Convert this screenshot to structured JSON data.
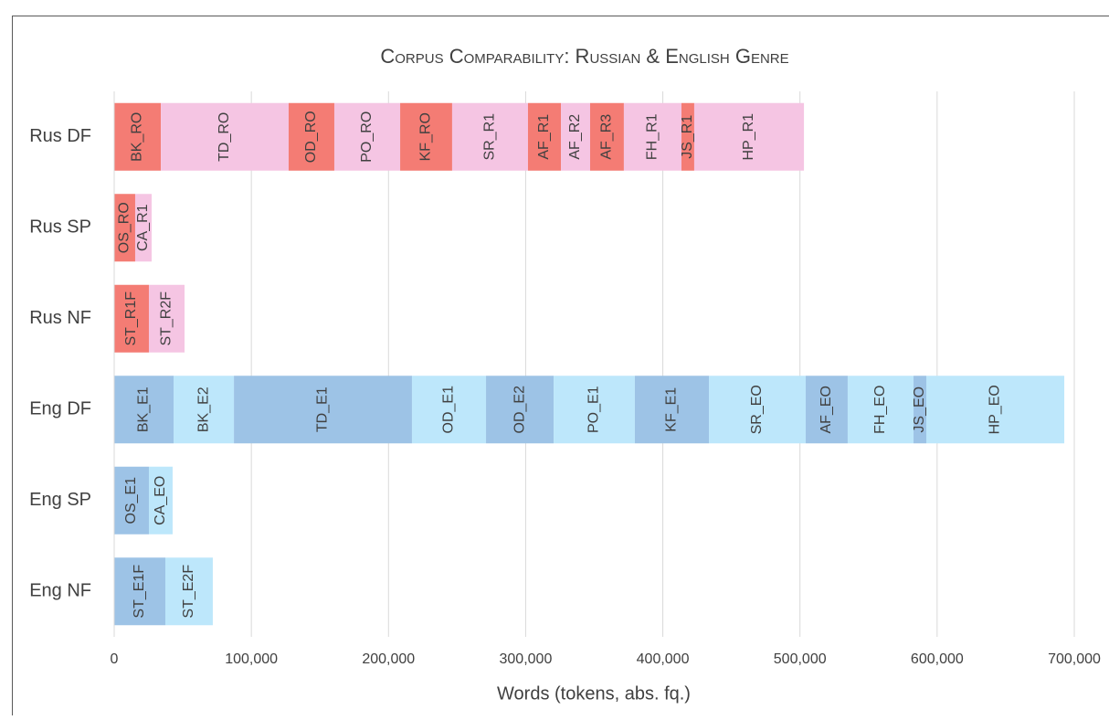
{
  "chart_data": {
    "type": "stacked-bar-horizontal",
    "title": "Corpus Comparability: Russian & English Genre",
    "x_label": "Words (tokens, abs. fq.)",
    "categories": [
      "Rus DF",
      "Rus SP",
      "Rus NF",
      "Eng DF",
      "Eng SP",
      "Eng NF"
    ],
    "stacks": [
      [
        {
          "label": "BK_RO",
          "value": 34000,
          "color": "#f47c74"
        },
        {
          "label": "TD_RO",
          "value": 93200,
          "color": "#f5c5e3"
        },
        {
          "label": "OD_RO",
          "value": 33300,
          "color": "#f47c74"
        },
        {
          "label": "PO_RO",
          "value": 48000,
          "color": "#f5c5e3"
        },
        {
          "label": "KF_RO",
          "value": 37900,
          "color": "#f47c74"
        },
        {
          "label": "SR_R1",
          "value": 55300,
          "color": "#f5c5e3"
        },
        {
          "label": "AF_R1",
          "value": 24000,
          "color": "#f47c74"
        },
        {
          "label": "AF_R2",
          "value": 21300,
          "color": "#f5c5e3"
        },
        {
          "label": "AF_R3",
          "value": 24600,
          "color": "#f47c74"
        },
        {
          "label": "FH_R1",
          "value": 42000,
          "color": "#f5c5e3"
        },
        {
          "label": "JS_R1",
          "value": 9300,
          "color": "#f47c74"
        },
        {
          "label": "HP_R1",
          "value": 80000,
          "color": "#f5c5e3"
        }
      ],
      [
        {
          "label": "OS_RO",
          "value": 15300,
          "color": "#f47c74"
        },
        {
          "label": "CA_R1",
          "value": 12000,
          "color": "#f5c5e3"
        }
      ],
      [
        {
          "label": "ST_R1F",
          "value": 25300,
          "color": "#f47c74"
        },
        {
          "label": "ST_R2F",
          "value": 26000,
          "color": "#f5c5e3"
        }
      ],
      [
        {
          "label": "BK_E1",
          "value": 43300,
          "color": "#9dc3e6"
        },
        {
          "label": "BK_E2",
          "value": 44000,
          "color": "#bde7fb"
        },
        {
          "label": "TD_E1",
          "value": 129800,
          "color": "#9dc3e6"
        },
        {
          "label": "OD_E1",
          "value": 54000,
          "color": "#bde7fb"
        },
        {
          "label": "OD_E2",
          "value": 49300,
          "color": "#9dc3e6"
        },
        {
          "label": "PO_E1",
          "value": 59200,
          "color": "#bde7fb"
        },
        {
          "label": "KF_E1",
          "value": 54000,
          "color": "#9dc3e6"
        },
        {
          "label": "SR_EO",
          "value": 70600,
          "color": "#bde7fb"
        },
        {
          "label": "AF_EO",
          "value": 30600,
          "color": "#9dc3e6"
        },
        {
          "label": "FH_EO",
          "value": 48000,
          "color": "#bde7fb"
        },
        {
          "label": "JS_EO",
          "value": 9300,
          "color": "#9dc3e6"
        },
        {
          "label": "HP_EO",
          "value": 100600,
          "color": "#bde7fb"
        }
      ],
      [
        {
          "label": "OS_E1",
          "value": 25300,
          "color": "#9dc3e6"
        },
        {
          "label": "CA_EO",
          "value": 17300,
          "color": "#bde7fb"
        }
      ],
      [
        {
          "label": "ST_E1F",
          "value": 37300,
          "color": "#9dc3e6"
        },
        {
          "label": "ST_E2F",
          "value": 34600,
          "color": "#bde7fb"
        }
      ]
    ],
    "xlim": [
      0,
      700000
    ],
    "xticks": [
      0,
      {
        "value": 100000,
        "label": "100,000"
      },
      {
        "value": 200000,
        "label": "200,000"
      },
      {
        "value": 300000,
        "label": "300,000"
      },
      {
        "value": 400000,
        "label": "400,000"
      },
      {
        "value": 500000,
        "label": "500,000"
      },
      {
        "value": 600000,
        "label": "600,000"
      },
      {
        "value": 700000,
        "label": "700,000"
      }
    ],
    "grid": true
  }
}
